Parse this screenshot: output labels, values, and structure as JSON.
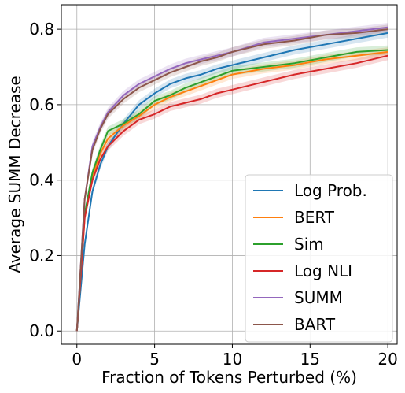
{
  "chart_data": {
    "type": "line",
    "xlabel": "Fraction of Tokens Perturbed (%)",
    "ylabel": "Average SUMM Decrease",
    "xlim": [
      -1,
      20.6
    ],
    "ylim": [
      -0.035,
      0.865
    ],
    "xticks": [
      0,
      5,
      10,
      15,
      20
    ],
    "xtick_labels": [
      "0",
      "5",
      "10",
      "15",
      "20"
    ],
    "yticks": [
      0.0,
      0.2,
      0.4,
      0.6,
      0.8
    ],
    "ytick_labels": [
      "0.0",
      "0.2",
      "0.4",
      "0.6",
      "0.8"
    ],
    "grid": true,
    "legend_position": "lower-right",
    "series": [
      {
        "name": "Log Prob.",
        "color": "#1f77b4",
        "x": [
          0,
          0.5,
          1,
          1.5,
          2,
          3,
          4,
          5,
          6,
          7,
          8,
          9,
          10,
          12,
          14,
          16,
          18,
          20
        ],
        "y": [
          0.0,
          0.23,
          0.37,
          0.44,
          0.49,
          0.55,
          0.6,
          0.63,
          0.655,
          0.67,
          0.68,
          0.695,
          0.705,
          0.725,
          0.745,
          0.76,
          0.775,
          0.79
        ]
      },
      {
        "name": "BERT",
        "color": "#ff7f0e",
        "x": [
          0,
          0.5,
          1,
          1.5,
          2,
          3,
          4,
          5,
          6,
          7,
          8,
          9,
          10,
          12,
          14,
          16,
          18,
          20
        ],
        "y": [
          0.0,
          0.3,
          0.41,
          0.47,
          0.51,
          0.545,
          0.57,
          0.6,
          0.62,
          0.635,
          0.65,
          0.665,
          0.68,
          0.695,
          0.705,
          0.72,
          0.73,
          0.74
        ]
      },
      {
        "name": "Sim",
        "color": "#2ca02c",
        "x": [
          0,
          0.5,
          1,
          1.5,
          2,
          3,
          4,
          5,
          6,
          7,
          8,
          9,
          10,
          12,
          14,
          16,
          18,
          20
        ],
        "y": [
          0.0,
          0.31,
          0.42,
          0.48,
          0.53,
          0.55,
          0.575,
          0.61,
          0.625,
          0.645,
          0.66,
          0.675,
          0.69,
          0.7,
          0.71,
          0.725,
          0.74,
          0.745
        ]
      },
      {
        "name": "Log NLI",
        "color": "#d62728",
        "x": [
          0,
          0.5,
          1,
          1.5,
          2,
          3,
          4,
          5,
          6,
          7,
          8,
          9,
          10,
          12,
          14,
          16,
          18,
          20
        ],
        "y": [
          0.0,
          0.3,
          0.4,
          0.455,
          0.49,
          0.53,
          0.56,
          0.575,
          0.595,
          0.605,
          0.615,
          0.63,
          0.64,
          0.66,
          0.68,
          0.695,
          0.71,
          0.73
        ]
      },
      {
        "name": "SUMM",
        "color": "#9467bd",
        "x": [
          0,
          0.5,
          1,
          1.5,
          2,
          3,
          4,
          5,
          6,
          7,
          8,
          9,
          10,
          12,
          14,
          16,
          18,
          20
        ],
        "y": [
          0.0,
          0.35,
          0.49,
          0.54,
          0.58,
          0.625,
          0.655,
          0.675,
          0.695,
          0.71,
          0.72,
          0.73,
          0.74,
          0.765,
          0.775,
          0.785,
          0.795,
          0.805
        ]
      },
      {
        "name": "BART",
        "color": "#8c564b",
        "x": [
          0,
          0.5,
          1,
          1.5,
          2,
          3,
          4,
          5,
          6,
          7,
          8,
          9,
          10,
          12,
          14,
          16,
          18,
          20
        ],
        "y": [
          0.0,
          0.35,
          0.48,
          0.535,
          0.575,
          0.615,
          0.645,
          0.665,
          0.685,
          0.7,
          0.715,
          0.725,
          0.74,
          0.76,
          0.77,
          0.785,
          0.79,
          0.8
        ]
      }
    ]
  }
}
